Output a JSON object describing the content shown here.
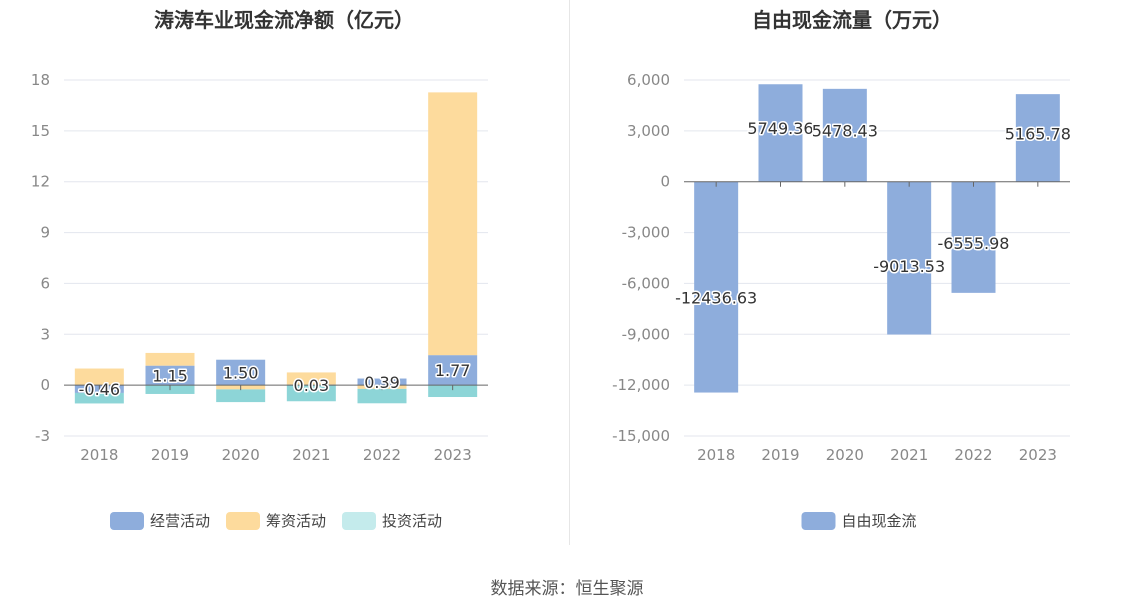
{
  "source_text": "数据来源：恒生聚源",
  "chart_data": [
    {
      "type": "bar",
      "stacked": true,
      "title": "涛涛车业现金流净额（亿元）",
      "categories": [
        "2018",
        "2019",
        "2020",
        "2021",
        "2022",
        "2023"
      ],
      "ylim": [
        -3,
        18
      ],
      "yticks": [
        -3,
        0,
        3,
        6,
        9,
        12,
        15,
        18
      ],
      "ytick_labels": [
        "-3",
        "0",
        "3",
        "6",
        "9",
        "12",
        "15",
        "18"
      ],
      "grid": true,
      "legend_position": "bottom",
      "series": [
        {
          "name": "经营活动",
          "color": "#8eaddc",
          "values": [
            -0.46,
            1.15,
            1.5,
            0.03,
            0.39,
            1.77
          ],
          "labels": [
            "-0.46",
            "1.15",
            "1.50",
            "0.03",
            "0.39",
            "1.77"
          ]
        },
        {
          "name": "筹资活动",
          "color": "#fddb9d",
          "values": [
            0.98,
            0.75,
            -0.25,
            0.72,
            -0.22,
            15.5
          ]
        },
        {
          "name": "投资活动",
          "color": "#8dd5d7",
          "legend_color": "#c4ebec",
          "values": [
            -0.62,
            -0.52,
            -0.75,
            -0.95,
            -0.85,
            -0.7
          ]
        }
      ]
    },
    {
      "type": "bar",
      "title": "自由现金流量（万元）",
      "categories": [
        "2018",
        "2019",
        "2020",
        "2021",
        "2022",
        "2023"
      ],
      "ylim": [
        -15000,
        6000
      ],
      "yticks": [
        -15000,
        -12000,
        -9000,
        -6000,
        -3000,
        0,
        3000,
        6000
      ],
      "ytick_labels": [
        "-15,000",
        "-12,000",
        "-9,000",
        "-6,000",
        "-3,000",
        "0",
        "3,000",
        "6,000"
      ],
      "grid": true,
      "legend_position": "bottom",
      "series": [
        {
          "name": "自由现金流",
          "color": "#8eaddc",
          "values": [
            -12436.63,
            5749.36,
            5478.43,
            -9013.53,
            -6555.98,
            5165.78
          ],
          "labels": [
            "-12436.63",
            "5749.36",
            "5478.43",
            "-9013.53",
            "-6555.98",
            "5165.78"
          ]
        }
      ]
    }
  ]
}
